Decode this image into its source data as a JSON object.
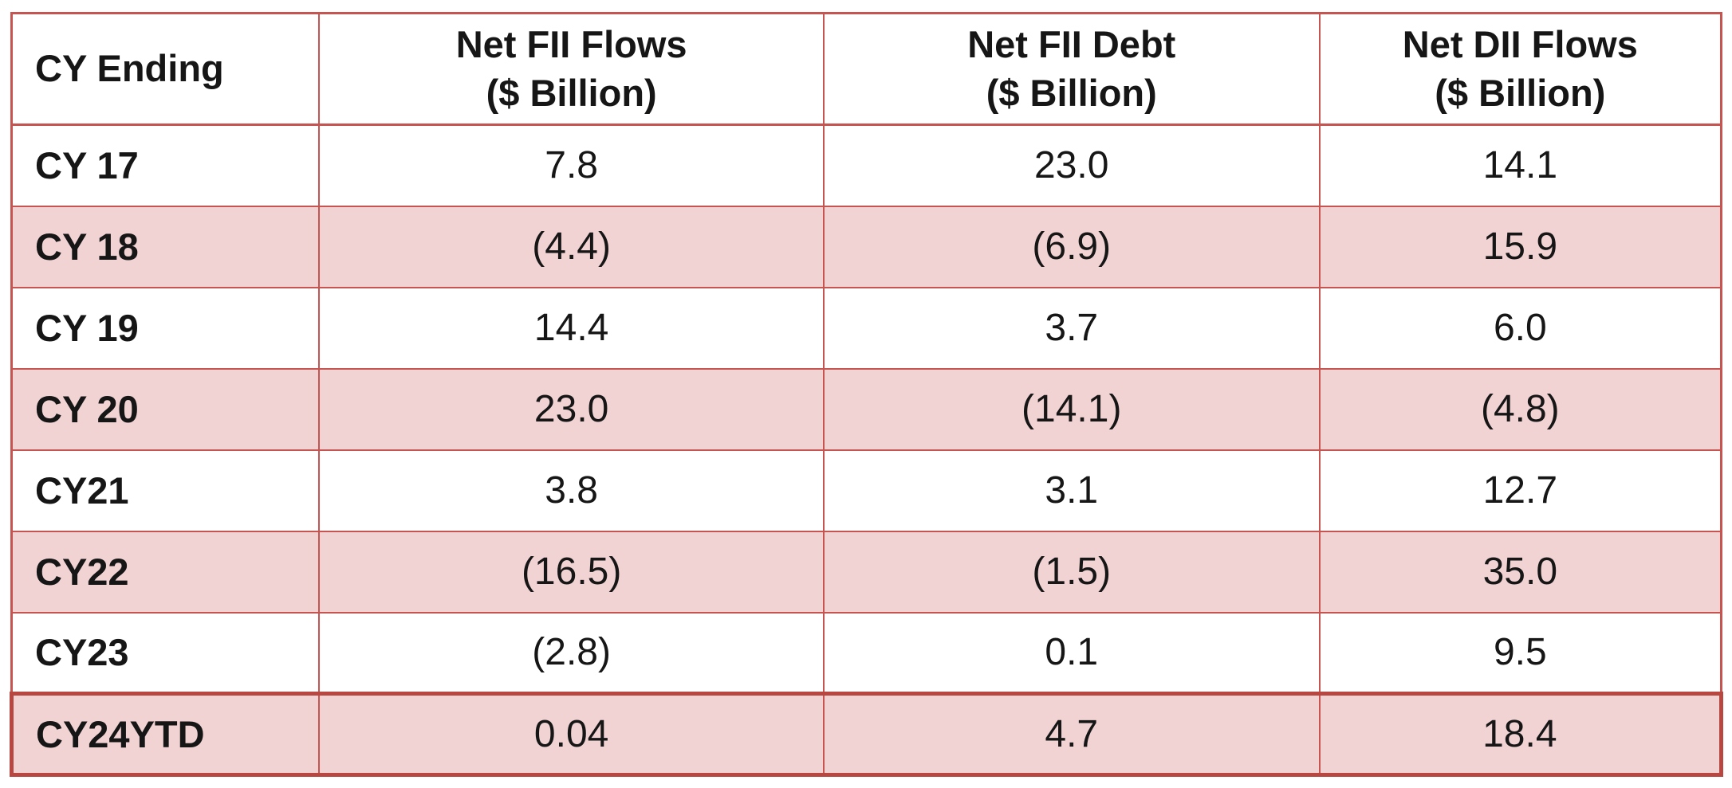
{
  "table": {
    "columns": [
      {
        "title": "CY Ending",
        "unit": ""
      },
      {
        "title": "Net FII Flows",
        "unit": "($ Billion)"
      },
      {
        "title": "Net FII Debt",
        "unit": "($ Billion)"
      },
      {
        "title": "Net DII Flows",
        "unit": "($ Billion)"
      }
    ],
    "rows": [
      {
        "label": "CY 17",
        "cells": [
          "7.8",
          "23.0",
          "14.1"
        ]
      },
      {
        "label": "CY 18",
        "cells": [
          "(4.4)",
          "(6.9)",
          "15.9"
        ]
      },
      {
        "label": "CY 19",
        "cells": [
          "14.4",
          "3.7",
          "6.0"
        ]
      },
      {
        "label": "CY 20",
        "cells": [
          "23.0",
          "(14.1)",
          "(4.8)"
        ]
      },
      {
        "label": "CY21",
        "cells": [
          "3.8",
          "3.1",
          "12.7"
        ]
      },
      {
        "label": "CY22",
        "cells": [
          "(16.5)",
          "(1.5)",
          "35.0"
        ]
      },
      {
        "label": "CY23",
        "cells": [
          "(2.8)",
          "0.1",
          "9.5"
        ]
      },
      {
        "label": "CY24YTD",
        "cells": [
          "0.04",
          "4.7",
          "18.4"
        ]
      }
    ]
  },
  "chart_data": {
    "type": "table",
    "columns": [
      "CY Ending",
      "Net FII Flows ($ Billion)",
      "Net FII Debt ($ Billion)",
      "Net DII Flows ($ Billion)"
    ],
    "rows": [
      [
        "CY 17",
        7.8,
        23.0,
        14.1
      ],
      [
        "CY 18",
        -4.4,
        -6.9,
        15.9
      ],
      [
        "CY 19",
        14.4,
        3.7,
        6.0
      ],
      [
        "CY 20",
        23.0,
        -14.1,
        -4.8
      ],
      [
        "CY21",
        3.8,
        3.1,
        12.7
      ],
      [
        "CY22",
        -16.5,
        -1.5,
        35.0
      ],
      [
        "CY23",
        -2.8,
        0.1,
        9.5
      ],
      [
        "CY24YTD",
        0.04,
        4.7,
        18.4
      ]
    ],
    "notes": "Negative values rendered in red inside parentheses; alternating rows shaded pink; CY24YTD row outlined with thick dark-red border"
  },
  "colors": {
    "border_thin": "#c65451",
    "border_thick": "#b84742",
    "row_pink": "#f2d3d3",
    "negative_text": "#b42327",
    "text": "#161616",
    "special_value_text": "#203138"
  }
}
